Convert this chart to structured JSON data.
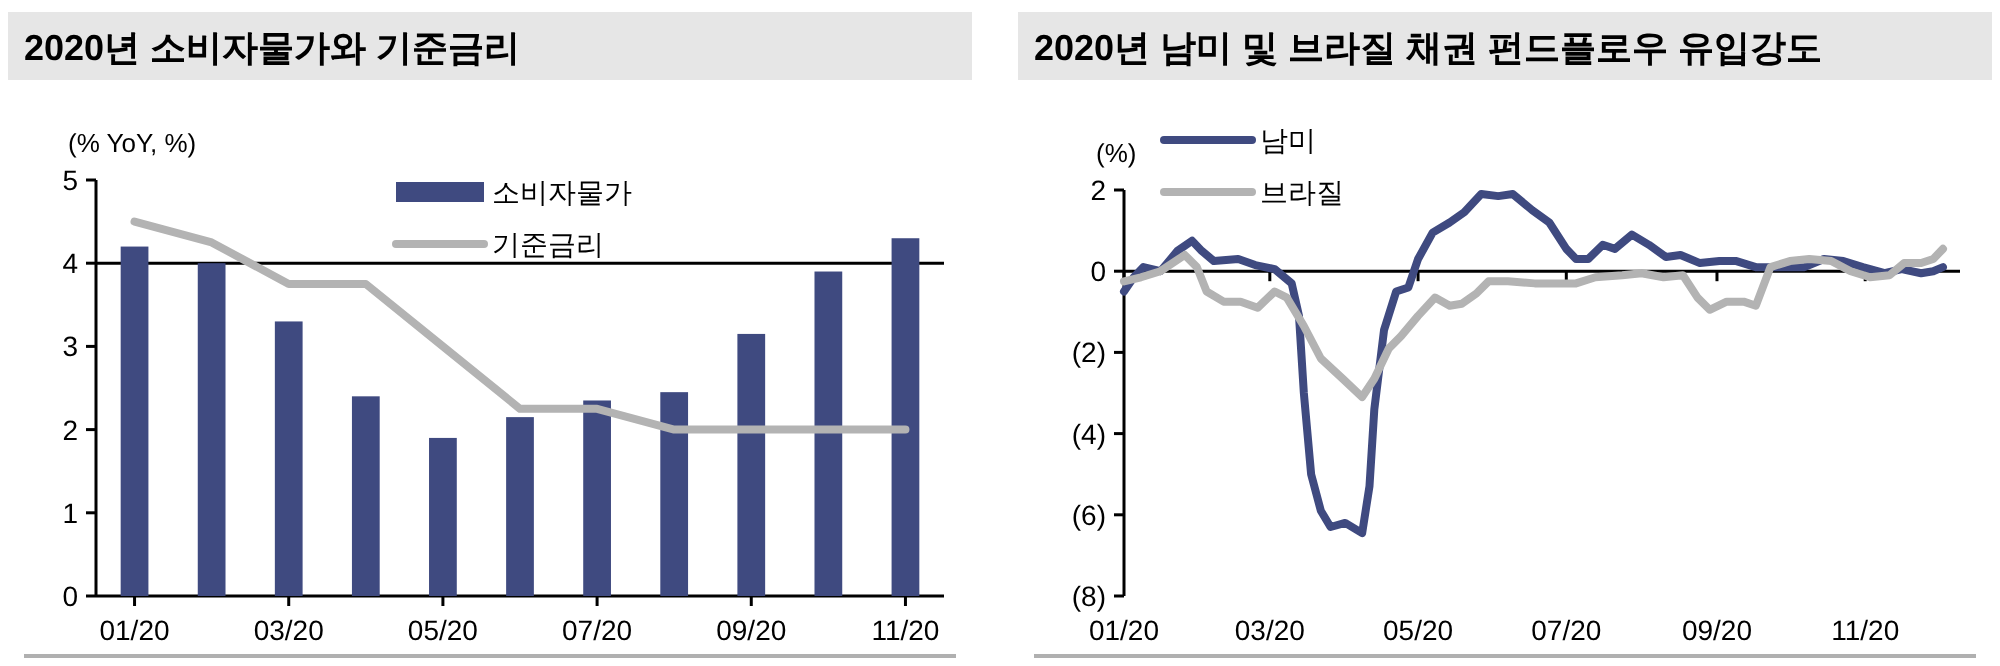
{
  "chart_data": [
    {
      "type": "bar",
      "title": "2020년 소비자물가와 기준금리",
      "ylabel": "(% YoY, %)",
      "categories": [
        "01/20",
        null,
        "03/20",
        null,
        "05/20",
        null,
        "07/20",
        null,
        "09/20",
        null,
        "11/20"
      ],
      "series": [
        {
          "name": "소비자물가",
          "color": "#3f4a80",
          "values": [
            4.2,
            4.0,
            3.3,
            2.4,
            1.9,
            2.15,
            2.35,
            2.45,
            3.15,
            3.9,
            4.3
          ]
        },
        {
          "name": "기준금리",
          "type": "line",
          "color": "#b3b3b3",
          "values": [
            4.5,
            4.25,
            3.75,
            3.75,
            3.0,
            2.25,
            2.25,
            2.0,
            2.0,
            2.0,
            2.0
          ]
        }
      ],
      "ylim": [
        0,
        5
      ],
      "yticks": [
        0,
        1,
        2,
        3,
        4,
        5
      ],
      "ref_lines": [
        {
          "axis": "y",
          "value": 4,
          "color": "#000000"
        }
      ],
      "legend": "top"
    },
    {
      "type": "line",
      "title": "2020년 남미 및 브라질 채권 펀드플로우 유입강도",
      "ylabel": "(%)",
      "series": [
        {
          "name": "남미",
          "color": "#3f4a80",
          "x": [
            "2020-01-01",
            "2020-01-05",
            "2020-01-09",
            "2020-01-16",
            "2020-01-23",
            "2020-01-29",
            "2020-02-02",
            "2020-02-07",
            "2020-02-17",
            "2020-02-24",
            "2020-03-03",
            "2020-03-10",
            "2020-03-13",
            "2020-03-15",
            "2020-03-18",
            "2020-03-22",
            "2020-03-26",
            "2020-04-01",
            "2020-04-08",
            "2020-04-11",
            "2020-04-13",
            "2020-04-17",
            "2020-04-22",
            "2020-04-27",
            "2020-05-01",
            "2020-05-07",
            "2020-05-14",
            "2020-05-20",
            "2020-05-27",
            "2020-06-03",
            "2020-06-09",
            "2020-06-17",
            "2020-06-24",
            "2020-07-01",
            "2020-07-05",
            "2020-07-10",
            "2020-07-16",
            "2020-07-21",
            "2020-07-28",
            "2020-08-04",
            "2020-08-11",
            "2020-08-17",
            "2020-08-25",
            "2020-09-02",
            "2020-09-09",
            "2020-09-17",
            "2020-09-26",
            "2020-10-07",
            "2020-10-15",
            "2020-10-23",
            "2020-10-31",
            "2020-11-09",
            "2020-11-16",
            "2020-11-24",
            "2020-11-29",
            "2020-12-03"
          ],
          "values": [
            -0.5,
            -0.15,
            0.1,
            0,
            0.5,
            0.75,
            0.5,
            0.25,
            0.3,
            0.15,
            0.05,
            -0.3,
            -1.1,
            -3.0,
            -5.0,
            -5.9,
            -6.3,
            -6.2,
            -6.45,
            -5.3,
            -3.4,
            -1.45,
            -0.5,
            -0.4,
            0.3,
            0.95,
            1.2,
            1.45,
            1.9,
            1.85,
            1.9,
            1.5,
            1.2,
            0.55,
            0.3,
            0.3,
            0.65,
            0.55,
            0.9,
            0.65,
            0.35,
            0.4,
            0.2,
            0.25,
            0.25,
            0.1,
            0.1,
            0.1,
            0.3,
            0.25,
            0.1,
            -0.05,
            0.05,
            -0.05,
            0,
            0.1
          ]
        },
        {
          "name": "브라질",
          "color": "#b3b3b3",
          "x": [
            "2020-01-01",
            "2020-01-08",
            "2020-01-16",
            "2020-01-26",
            "2020-01-31",
            "2020-02-04",
            "2020-02-11",
            "2020-02-18",
            "2020-02-25",
            "2020-03-03",
            "2020-03-08",
            "2020-03-15",
            "2020-03-22",
            "2020-03-31",
            "2020-04-08",
            "2020-04-13",
            "2020-04-19",
            "2020-04-24",
            "2020-05-01",
            "2020-05-08",
            "2020-05-14",
            "2020-05-19",
            "2020-05-25",
            "2020-05-30",
            "2020-06-07",
            "2020-06-18",
            "2020-06-27",
            "2020-07-05",
            "2020-07-13",
            "2020-07-24",
            "2020-08-01",
            "2020-08-10",
            "2020-08-18",
            "2020-08-24",
            "2020-08-29",
            "2020-09-05",
            "2020-09-12",
            "2020-09-17",
            "2020-09-23",
            "2020-10-01",
            "2020-10-09",
            "2020-10-18",
            "2020-10-26",
            "2020-11-03",
            "2020-11-11",
            "2020-11-17",
            "2020-11-24",
            "2020-11-29",
            "2020-12-03"
          ],
          "values": [
            -0.25,
            -0.15,
            0,
            0.4,
            0.1,
            -0.5,
            -0.75,
            -0.75,
            -0.9,
            -0.5,
            -0.65,
            -1.35,
            -2.15,
            -2.65,
            -3.1,
            -2.65,
            -1.9,
            -1.6,
            -1.1,
            -0.65,
            -0.85,
            -0.8,
            -0.55,
            -0.25,
            -0.25,
            -0.3,
            -0.3,
            -0.3,
            -0.15,
            -0.1,
            -0.05,
            -0.15,
            -0.1,
            -0.65,
            -0.95,
            -0.75,
            -0.75,
            -0.85,
            0.1,
            0.25,
            0.3,
            0.25,
            0,
            -0.15,
            -0.1,
            0.2,
            0.2,
            0.3,
            0.55
          ]
        }
      ],
      "xlim": [
        "2020-01-01",
        "2020-12-10"
      ],
      "xticks": [
        {
          "value": "2020-01-01",
          "label": "01/20"
        },
        {
          "value": "2020-03-01",
          "label": "03/20"
        },
        {
          "value": "2020-05-01",
          "label": "05/20"
        },
        {
          "value": "2020-07-01",
          "label": "07/20"
        },
        {
          "value": "2020-09-01",
          "label": "09/20"
        },
        {
          "value": "2020-11-01",
          "label": "11/20"
        }
      ],
      "ylim": [
        -8,
        2
      ],
      "yticks": [
        {
          "value": -8,
          "label": "(8)"
        },
        {
          "value": -6,
          "label": "(6)"
        },
        {
          "value": -4,
          "label": "(4)"
        },
        {
          "value": -2,
          "label": "(2)"
        },
        0,
        2
      ],
      "ref_lines": [
        {
          "axis": "y",
          "value": 0,
          "color": "#000000"
        }
      ],
      "legend": "top left"
    }
  ]
}
